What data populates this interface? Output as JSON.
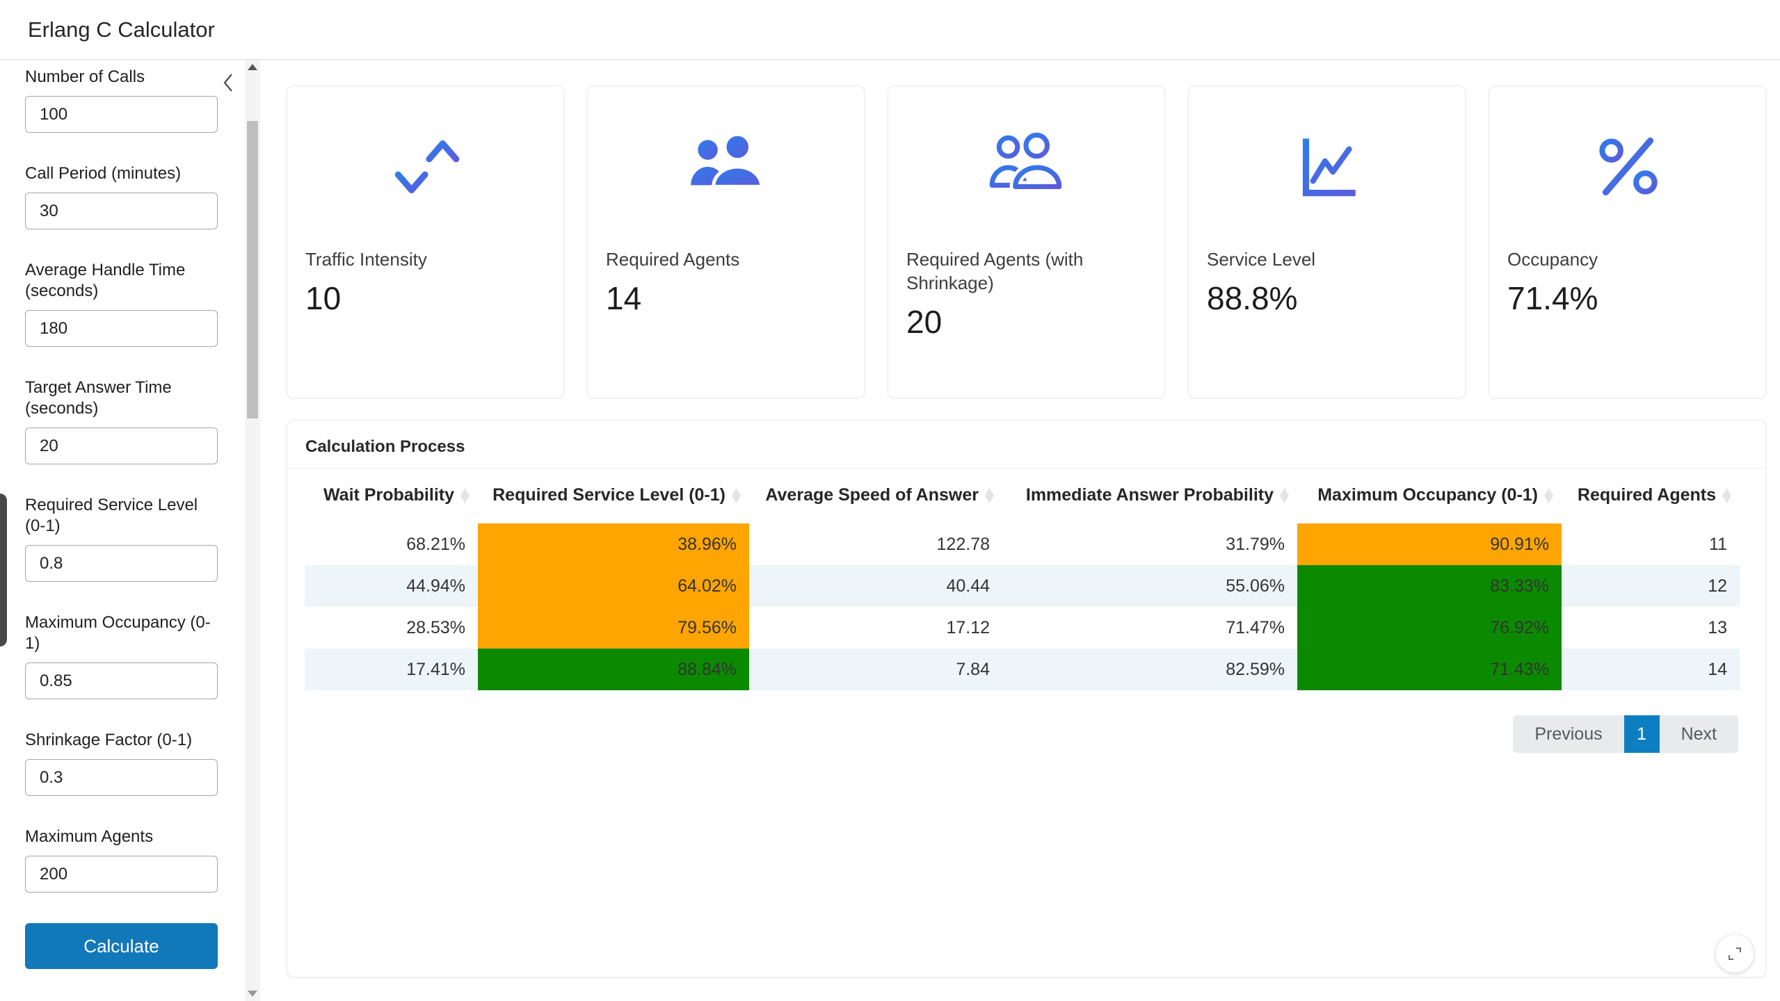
{
  "app": {
    "title": "Erlang C Calculator"
  },
  "sidebar": {
    "fields": [
      {
        "label": "Number of Calls",
        "value": "100"
      },
      {
        "label": "Call Period (minutes)",
        "value": "30"
      },
      {
        "label": "Average Handle Time (seconds)",
        "value": "180"
      },
      {
        "label": "Target Answer Time (seconds)",
        "value": "20"
      },
      {
        "label": "Required Service Level (0-1)",
        "value": "0.8"
      },
      {
        "label": "Maximum Occupancy (0-1)",
        "value": "0.85"
      },
      {
        "label": "Shrinkage Factor (0-1)",
        "value": "0.3"
      },
      {
        "label": "Maximum Agents",
        "value": "200"
      }
    ],
    "calculate_label": "Calculate"
  },
  "cards": [
    {
      "label": "Traffic Intensity",
      "value": "10",
      "icon": "arrows-down-up-icon"
    },
    {
      "label": "Required Agents",
      "value": "14",
      "icon": "users-filled-icon"
    },
    {
      "label": "Required Agents (with Shrinkage)",
      "value": "20",
      "icon": "users-outline-icon"
    },
    {
      "label": "Service Level",
      "value": "88.8%",
      "icon": "chart-line-icon"
    },
    {
      "label": "Occupancy",
      "value": "71.4%",
      "icon": "percent-icon"
    }
  ],
  "panel": {
    "title": "Calculation Process",
    "table": {
      "columns": [
        "Wait Probability",
        "Required Service Level (0-1)",
        "Average Speed of Answer",
        "Immediate Answer Probability",
        "Maximum Occupancy (0-1)",
        "Required Agents"
      ],
      "rows": [
        {
          "cells": [
            "68.21%",
            "38.96%",
            "122.78",
            "31.79%",
            "90.91%",
            "11"
          ],
          "cell_colors": [
            null,
            "orange",
            null,
            null,
            "orange",
            null
          ]
        },
        {
          "cells": [
            "44.94%",
            "64.02%",
            "40.44",
            "55.06%",
            "83.33%",
            "12"
          ],
          "cell_colors": [
            null,
            "orange",
            null,
            null,
            "green",
            null
          ]
        },
        {
          "cells": [
            "28.53%",
            "79.56%",
            "17.12",
            "71.47%",
            "76.92%",
            "13"
          ],
          "cell_colors": [
            null,
            "orange",
            null,
            null,
            "green",
            null
          ]
        },
        {
          "cells": [
            "17.41%",
            "88.84%",
            "7.84",
            "82.59%",
            "71.43%",
            "14"
          ],
          "cell_colors": [
            null,
            "green",
            null,
            null,
            "green",
            null
          ]
        }
      ]
    },
    "pagination": {
      "previous": "Previous",
      "page": "1",
      "next": "Next"
    }
  },
  "colors": {
    "button_blue": "#1178b9",
    "pagination_active_blue": "#0d7fc0",
    "cell_orange": "#ffa502",
    "cell_green": "#0b8a00",
    "stripe_blue": "#edf5f8",
    "icon_gradient_start": "#2e7ceb",
    "icon_gradient_end": "#5a5cdb"
  }
}
